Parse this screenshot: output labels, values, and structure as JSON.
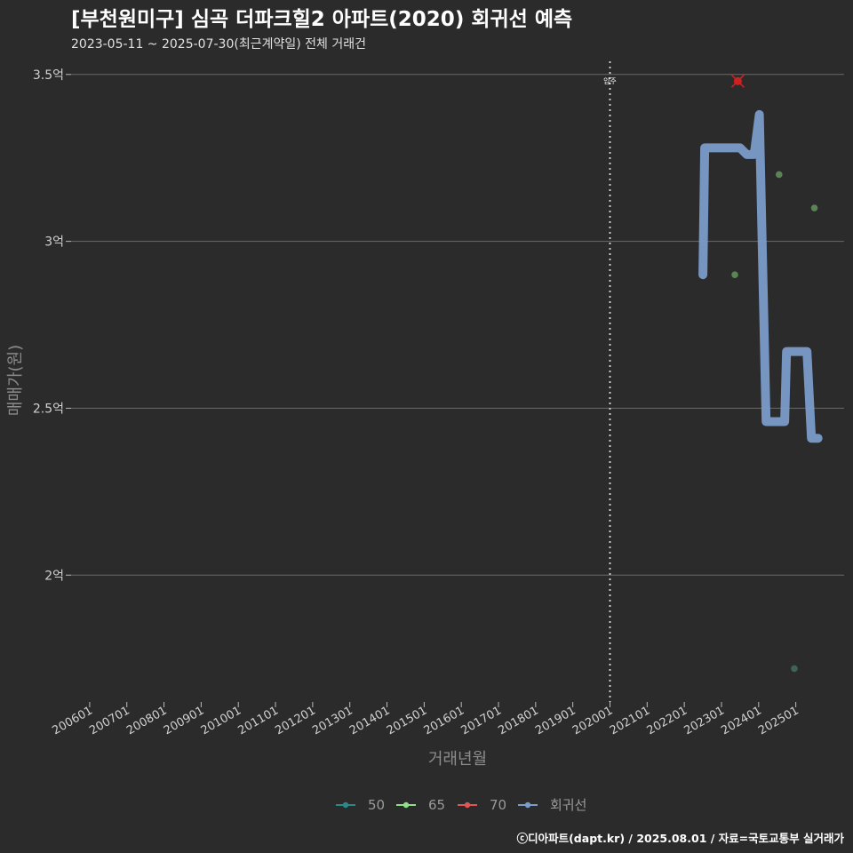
{
  "title": "[부천원미구] 심곡 더파크힐2 아파트(2020) 회귀선 예측",
  "subtitle": "2023-05-11 ~ 2025-07-30(최근계약일) 전체 거래건",
  "caption": "ⓒ디아파트(dapt.kr) / 2025.08.01 / 자료=국토교통부 실거래가",
  "colors": {
    "background": "#2b2b2b",
    "grid": "#6a6a6a",
    "s50": "#2a8a8a",
    "s65": "#8fe08a",
    "s70": "#e05555",
    "regression": "#7b9bc9",
    "highlight": "#cc2222"
  },
  "chart_data": {
    "type": "scatter",
    "title": "[부천원미구] 심곡 더파크힐2 아파트(2020) 회귀선 예측",
    "xlabel": "거래년월",
    "ylabel": "매매가(원)",
    "ylim": [
      1.62,
      3.55
    ],
    "xlim": [
      2005.5,
      2026.3
    ],
    "y_ticks": [
      {
        "value": 2.0,
        "label": "2억"
      },
      {
        "value": 2.5,
        "label": "2.5억"
      },
      {
        "value": 3.0,
        "label": "3억"
      },
      {
        "value": 3.5,
        "label": "3.5억"
      }
    ],
    "x_ticks": [
      {
        "value": 2006,
        "label": "200601"
      },
      {
        "value": 2007,
        "label": "200701"
      },
      {
        "value": 2008,
        "label": "200801"
      },
      {
        "value": 2009,
        "label": "200901"
      },
      {
        "value": 2010,
        "label": "201001"
      },
      {
        "value": 2011,
        "label": "201101"
      },
      {
        "value": 2012,
        "label": "201201"
      },
      {
        "value": 2013,
        "label": "201301"
      },
      {
        "value": 2014,
        "label": "201401"
      },
      {
        "value": 2015,
        "label": "201501"
      },
      {
        "value": 2016,
        "label": "201601"
      },
      {
        "value": 2017,
        "label": "201701"
      },
      {
        "value": 2018,
        "label": "201801"
      },
      {
        "value": 2019,
        "label": "201901"
      },
      {
        "value": 2020,
        "label": "202001"
      },
      {
        "value": 2021,
        "label": "202101"
      },
      {
        "value": 2022,
        "label": "202201"
      },
      {
        "value": 2023,
        "label": "202301"
      },
      {
        "value": 2024,
        "label": "202401"
      },
      {
        "value": 2025,
        "label": "202501"
      }
    ],
    "move_in": {
      "x": 2020.0,
      "label": "입주"
    },
    "series": [
      {
        "name": "50",
        "points": [
          {
            "x": 2024.96,
            "y": 1.72
          }
        ]
      },
      {
        "name": "65",
        "points": [
          {
            "x": 2023.36,
            "y": 2.9
          },
          {
            "x": 2024.55,
            "y": 3.2
          },
          {
            "x": 2025.5,
            "y": 3.1
          }
        ]
      },
      {
        "name": "70",
        "points": [
          {
            "x": 2023.44,
            "y": 3.48
          }
        ]
      },
      {
        "name": "회귀선",
        "points": [
          {
            "x": 2022.5,
            "y": 2.9
          },
          {
            "x": 2022.55,
            "y": 3.28
          },
          {
            "x": 2023.5,
            "y": 3.28
          },
          {
            "x": 2023.68,
            "y": 3.26
          },
          {
            "x": 2023.88,
            "y": 3.26
          },
          {
            "x": 2024.02,
            "y": 3.38
          },
          {
            "x": 2024.2,
            "y": 2.46
          },
          {
            "x": 2024.7,
            "y": 2.46
          },
          {
            "x": 2024.75,
            "y": 2.67
          },
          {
            "x": 2025.3,
            "y": 2.67
          },
          {
            "x": 2025.42,
            "y": 2.41
          },
          {
            "x": 2025.6,
            "y": 2.41
          }
        ]
      }
    ],
    "highlight": {
      "series": "70",
      "x": 2023.44,
      "y": 3.48
    },
    "legend": [
      {
        "name": "50",
        "color_key": "s50"
      },
      {
        "name": "65",
        "color_key": "s65"
      },
      {
        "name": "70",
        "color_key": "s70"
      },
      {
        "name": "회귀선",
        "color_key": "regression"
      }
    ],
    "legend_position": "bottom"
  }
}
